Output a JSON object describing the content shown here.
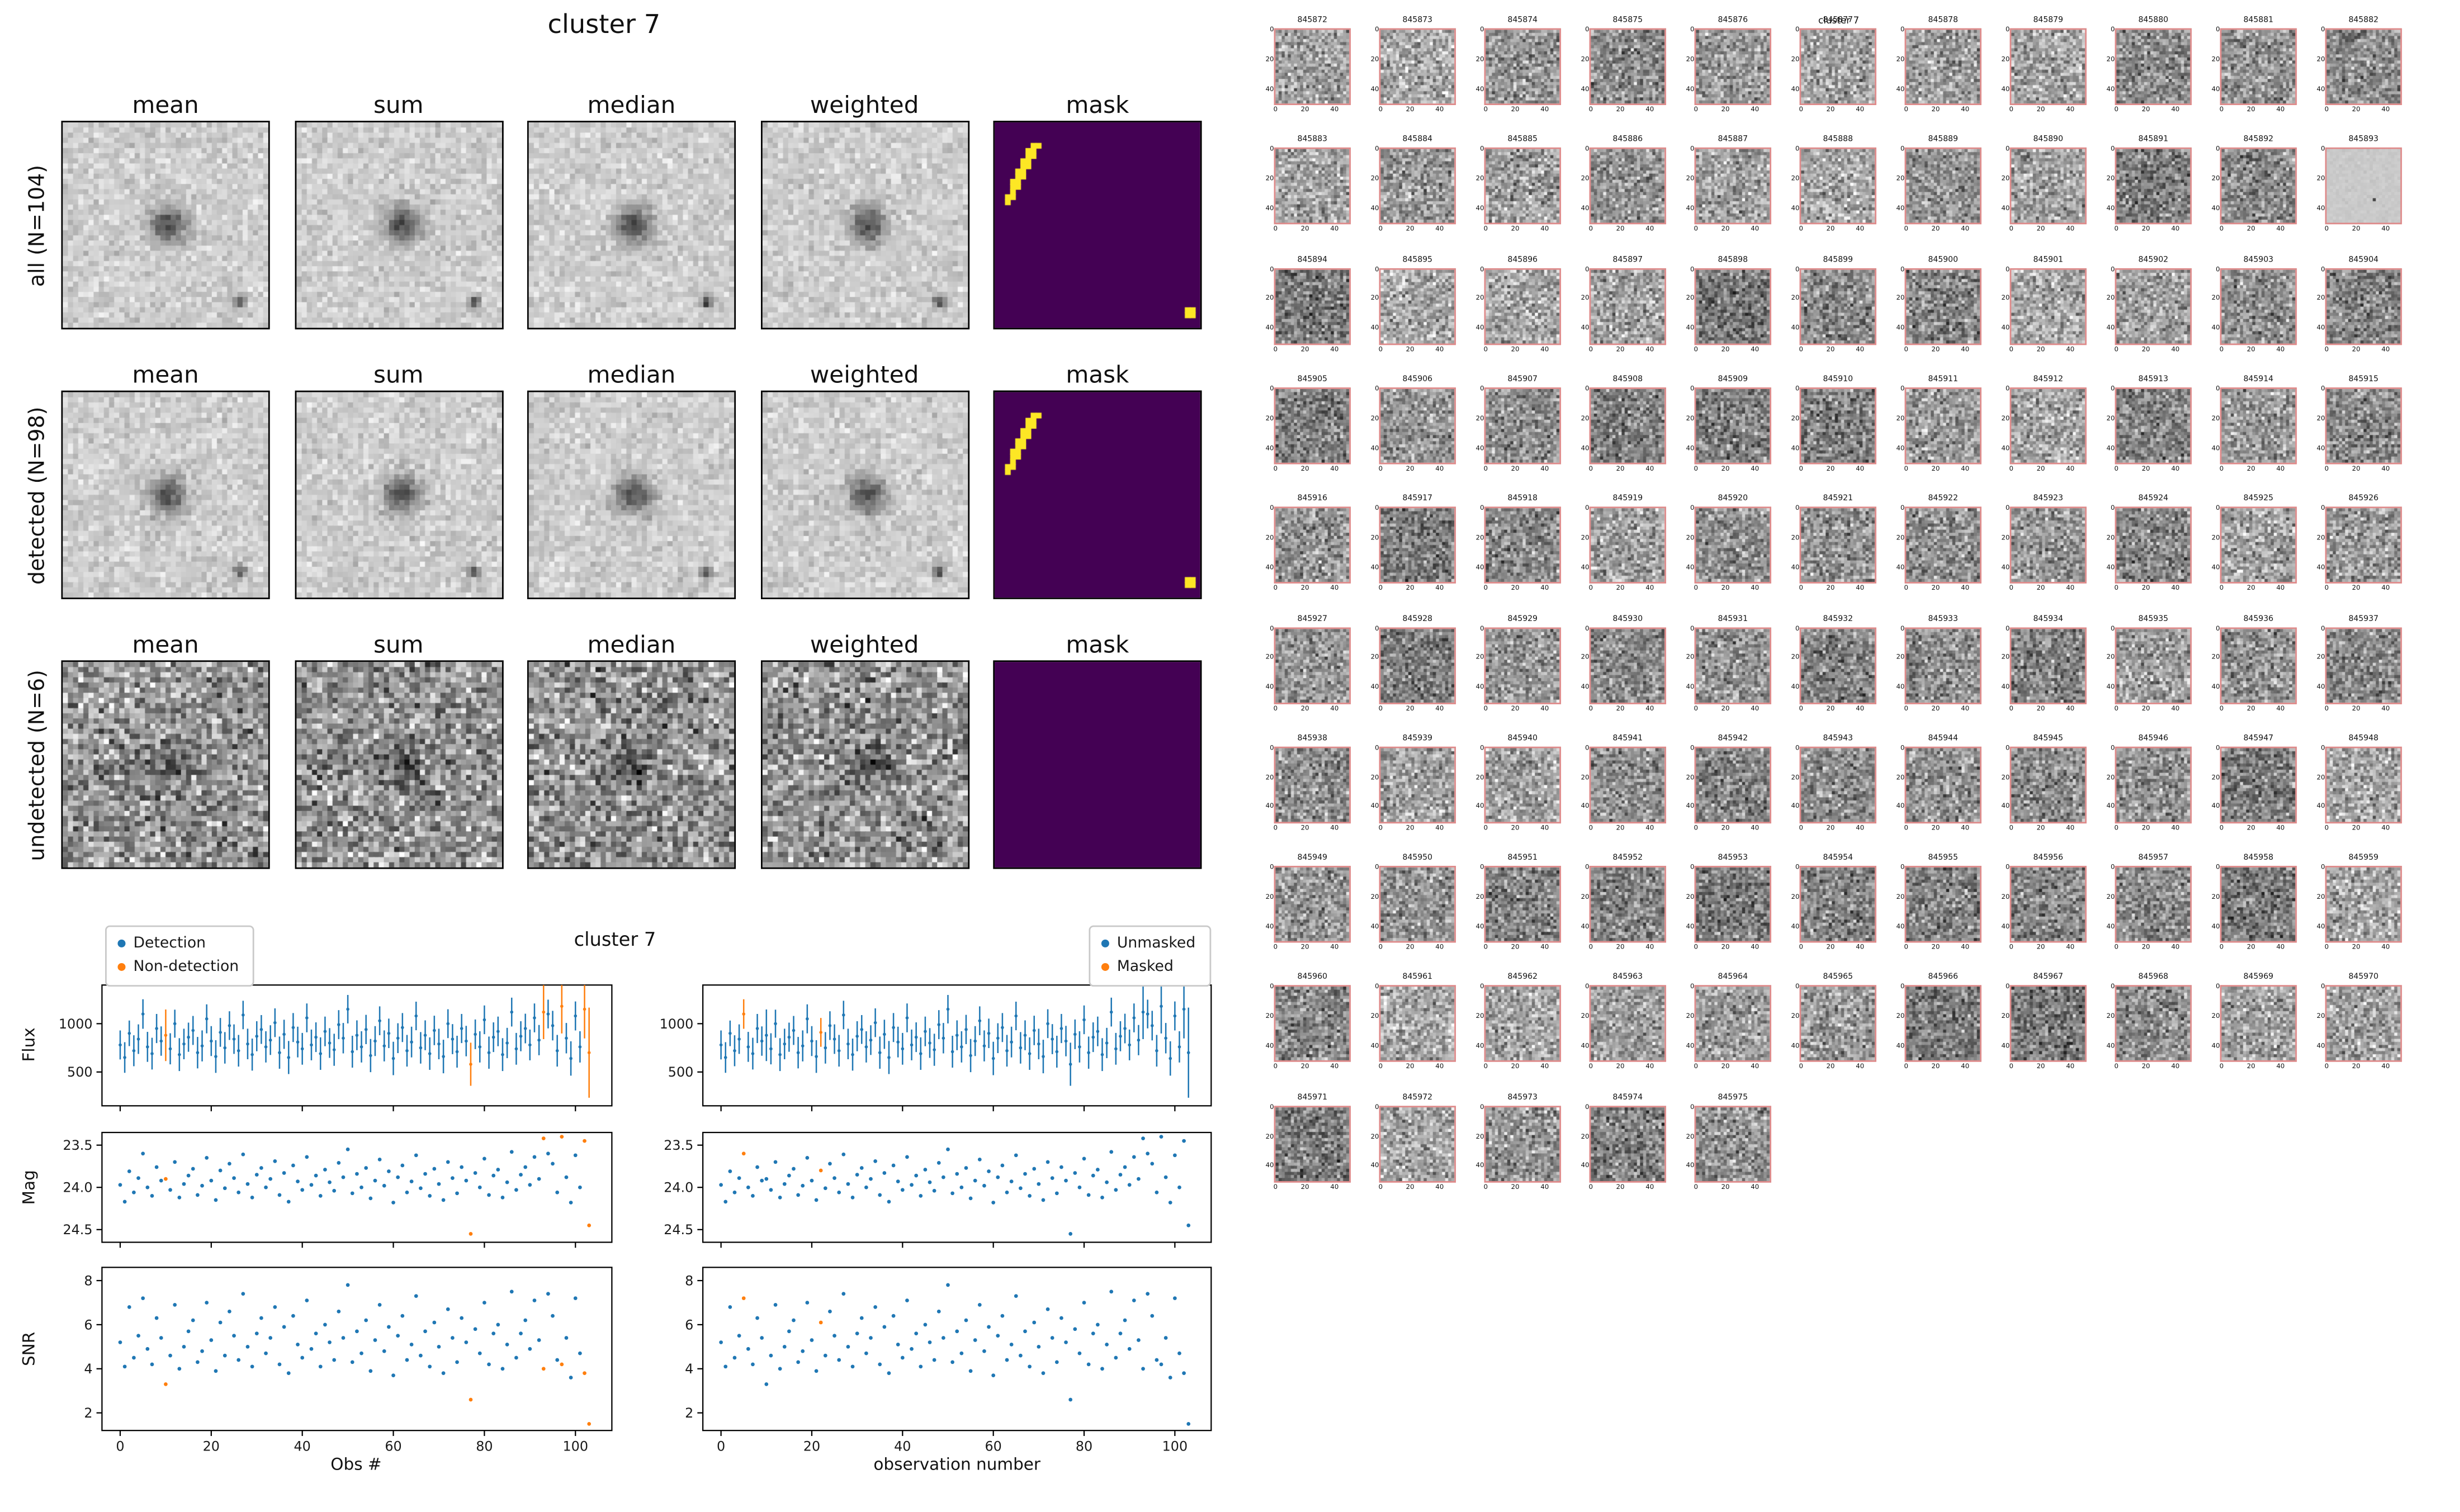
{
  "composite": {
    "title": "cluster 7",
    "mask_background": "#440154",
    "mask_highlight": "#fde725",
    "mask_streak_cells": [
      [
        4,
        7
      ],
      [
        4,
        8
      ],
      [
        5,
        6
      ],
      [
        5,
        7
      ],
      [
        6,
        6
      ],
      [
        6,
        7
      ],
      [
        7,
        5
      ],
      [
        7,
        6
      ],
      [
        8,
        5
      ],
      [
        8,
        6
      ],
      [
        9,
        4
      ],
      [
        9,
        5
      ],
      [
        10,
        4
      ],
      [
        10,
        5
      ],
      [
        11,
        3
      ],
      [
        11,
        4
      ],
      [
        12,
        3
      ],
      [
        12,
        4
      ],
      [
        13,
        3
      ],
      [
        14,
        2
      ],
      [
        14,
        3
      ],
      [
        15,
        2
      ]
    ],
    "mask_corner_cells": [
      [
        36,
        37
      ],
      [
        36,
        38
      ],
      [
        37,
        37
      ],
      [
        37,
        38
      ]
    ]
  },
  "plots": {
    "title": "cluster 7",
    "xlabel_left": "Obs #",
    "xlabel_right": "observation number",
    "ylabels": [
      "Flux",
      "Mag",
      "SNR"
    ]
  },
  "thumbnails": {
    "title": "cluster 7",
    "flat_id": "845893"
  },
  "chart_data": [
    {
      "type": "scatter",
      "title": "cluster 7",
      "n_observations": 104,
      "x_start": 0,
      "x_step": 1,
      "xticks": [
        0,
        20,
        40,
        60,
        80,
        100
      ],
      "xlabels": [
        "Obs #",
        "observation number"
      ],
      "legend_left": [
        "Detection",
        "Non-detection"
      ],
      "legend_right": [
        "Unmasked",
        "Masked"
      ],
      "colors": {
        "detection": "#1f77b4",
        "non_detection": "#ff7f0e",
        "unmasked": "#1f77b4",
        "masked": "#ff7f0e"
      },
      "non_detection_indices": [
        10,
        77,
        93,
        97,
        102,
        103
      ],
      "masked_indices": [
        5,
        22
      ],
      "series": [
        {
          "name": "Flux",
          "yticks": [
            500,
            1000
          ],
          "ytick_labels": [
            "500",
            "1000"
          ],
          "ylim": [
            150,
            1400
          ],
          "has_error_bars": true,
          "values": [
            780,
            650,
            900,
            720,
            840,
            1100,
            760,
            690,
            950,
            820,
            880,
            740,
            1000,
            680,
            790,
            860,
            930,
            700,
            770,
            1050,
            820,
            660,
            910,
            750,
            980,
            840,
            720,
            1090,
            790,
            680,
            870,
            940,
            760,
            830,
            1010,
            700,
            890,
            650,
            960,
            810,
            740,
            1060,
            780,
            860,
            690,
            920,
            800,
            730,
            990,
            850,
            1150,
            710,
            880,
            760,
            940,
            670,
            820,
            1030,
            770,
            900,
            640,
            850,
            960,
            720,
            810,
            1080,
            750,
            880,
            690,
            930,
            790,
            660,
            1000,
            840,
            710,
            950,
            820,
            580,
            890,
            760,
            1040,
            700,
            860,
            920,
            680,
            800,
            1120,
            740,
            870,
            950,
            780,
            1060,
            830,
            1120,
            1100,
            980,
            720,
            1180,
            850,
            640,
            1080,
            760,
            1150,
            700
          ]
        },
        {
          "name": "Mag",
          "yticks": [
            23.5,
            24.0,
            24.5
          ],
          "ytick_labels": [
            "23.5",
            "24.0",
            "24.5"
          ],
          "ylim": [
            23.35,
            24.65
          ],
          "inverted_axis": true,
          "values": [
            23.97,
            24.17,
            23.81,
            24.06,
            23.89,
            23.6,
            24.0,
            24.1,
            23.76,
            23.92,
            23.9,
            24.03,
            23.7,
            24.12,
            23.96,
            23.86,
            23.78,
            24.09,
            23.98,
            23.65,
            23.92,
            24.15,
            23.8,
            24.01,
            23.72,
            23.89,
            24.06,
            23.61,
            23.96,
            24.12,
            23.85,
            23.77,
            24.0,
            23.9,
            23.69,
            24.09,
            23.83,
            24.17,
            23.74,
            23.93,
            24.03,
            23.64,
            23.97,
            23.86,
            24.1,
            23.79,
            23.94,
            24.04,
            23.71,
            23.88,
            23.55,
            24.07,
            23.84,
            24.0,
            23.77,
            24.13,
            23.92,
            23.67,
            23.98,
            23.81,
            24.18,
            23.88,
            23.74,
            24.06,
            23.93,
            23.62,
            24.01,
            23.84,
            24.1,
            23.78,
            23.96,
            24.15,
            23.7,
            23.89,
            24.07,
            23.76,
            23.92,
            24.55,
            23.83,
            24.0,
            23.66,
            24.09,
            23.86,
            23.79,
            24.12,
            23.94,
            23.58,
            24.03,
            23.85,
            23.76,
            23.97,
            23.64,
            23.9,
            23.42,
            23.6,
            23.72,
            24.06,
            23.4,
            23.88,
            24.18,
            23.62,
            24.0,
            23.45,
            24.45
          ]
        },
        {
          "name": "SNR",
          "yticks": [
            2,
            4,
            6,
            8
          ],
          "ytick_labels": [
            "2",
            "4",
            "6",
            "8"
          ],
          "ylim": [
            1.2,
            8.6
          ],
          "values": [
            5.2,
            4.1,
            6.8,
            4.5,
            5.5,
            7.2,
            4.9,
            4.2,
            6.3,
            5.4,
            3.3,
            4.6,
            6.9,
            4.0,
            5.0,
            5.7,
            6.2,
            4.3,
            4.8,
            7.0,
            5.3,
            3.9,
            6.1,
            4.6,
            6.6,
            5.5,
            4.4,
            7.4,
            5.0,
            4.1,
            5.6,
            6.3,
            4.7,
            5.4,
            6.8,
            4.2,
            5.9,
            3.8,
            6.4,
            5.1,
            4.5,
            7.1,
            4.9,
            5.6,
            4.1,
            6.0,
            5.2,
            4.4,
            6.6,
            5.4,
            7.8,
            4.3,
            5.7,
            4.7,
            6.2,
            3.9,
            5.3,
            6.9,
            4.8,
            5.9,
            3.7,
            5.5,
            6.4,
            4.4,
            5.1,
            7.3,
            4.6,
            5.7,
            4.1,
            6.1,
            5.0,
            3.8,
            6.7,
            5.4,
            4.3,
            6.3,
            5.2,
            2.6,
            5.8,
            4.7,
            7.0,
            4.2,
            5.6,
            6.0,
            4.0,
            5.1,
            7.5,
            4.5,
            5.6,
            6.2,
            4.9,
            7.1,
            5.3,
            4.0,
            7.4,
            6.4,
            4.4,
            4.2,
            5.4,
            3.6,
            7.2,
            4.7,
            3.8,
            1.5
          ]
        }
      ]
    },
    {
      "type": "image-grid",
      "title": "cluster 7",
      "columns": [
        "mean",
        "sum",
        "median",
        "weighted",
        "mask"
      ],
      "rows": [
        "all (N=104)",
        "detected (N=98)",
        "undetected (N=6)"
      ]
    },
    {
      "type": "image-grid",
      "title": "cluster 7",
      "grid_columns": 11,
      "axis_ticks": [
        0,
        20,
        40
      ],
      "cutout_ids": [
        "845872",
        "845873",
        "845874",
        "845875",
        "845876",
        "845877",
        "845878",
        "845879",
        "845880",
        "845881",
        "845882",
        "845883",
        "845884",
        "845885",
        "845886",
        "845887",
        "845888",
        "845889",
        "845890",
        "845891",
        "845892",
        "845893",
        "845894",
        "845895",
        "845896",
        "845897",
        "845898",
        "845899",
        "845900",
        "845901",
        "845902",
        "845903",
        "845904",
        "845905",
        "845906",
        "845907",
        "845908",
        "845909",
        "845910",
        "845911",
        "845912",
        "845913",
        "845914",
        "845915",
        "845916",
        "845917",
        "845918",
        "845919",
        "845920",
        "845921",
        "845922",
        "845923",
        "845924",
        "845925",
        "845926",
        "845927",
        "845928",
        "845929",
        "845930",
        "845931",
        "845932",
        "845933",
        "845934",
        "845935",
        "845936",
        "845937",
        "845938",
        "845939",
        "845940",
        "845941",
        "845942",
        "845943",
        "845944",
        "845945",
        "845946",
        "845947",
        "845948",
        "845949",
        "845950",
        "845951",
        "845952",
        "845953",
        "845954",
        "845955",
        "845956",
        "845957",
        "845958",
        "845959",
        "845960",
        "845961",
        "845962",
        "845963",
        "845964",
        "845965",
        "845966",
        "845967",
        "845968",
        "845969",
        "845970",
        "845971",
        "845972",
        "845973",
        "845974",
        "845975"
      ]
    }
  ]
}
